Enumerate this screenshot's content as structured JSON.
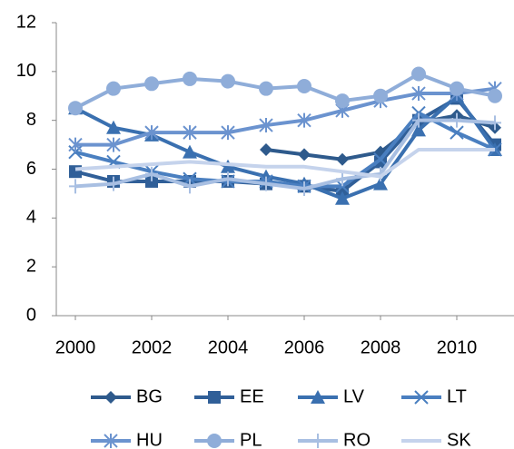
{
  "chart_data": {
    "type": "line",
    "x": [
      2000,
      2001,
      2002,
      2003,
      2004,
      2005,
      2006,
      2007,
      2008,
      2009,
      2010,
      2011
    ],
    "xlim": [
      1999.5,
      2011.5
    ],
    "xticks": [
      2000,
      2002,
      2004,
      2006,
      2008,
      2010
    ],
    "ylim": [
      0,
      12
    ],
    "yticks": [
      0,
      2,
      4,
      6,
      8,
      10,
      12
    ],
    "grid": false,
    "legend": "bottom",
    "series": [
      {
        "name": "BG",
        "color": "#2e5a8c",
        "marker": "diamond",
        "values": [
          null,
          null,
          null,
          null,
          null,
          6.8,
          6.6,
          6.4,
          6.7,
          7.9,
          8.2,
          7.7
        ]
      },
      {
        "name": "EE",
        "color": "#305f98",
        "marker": "square",
        "values": [
          5.9,
          5.5,
          5.5,
          5.5,
          5.5,
          5.4,
          5.3,
          5.1,
          6.3,
          8.0,
          8.9,
          7.0
        ]
      },
      {
        "name": "LV",
        "color": "#3a70b0",
        "marker": "triangle",
        "values": [
          8.5,
          7.7,
          7.4,
          6.7,
          6.1,
          5.7,
          5.4,
          4.8,
          5.4,
          7.6,
          9.0,
          6.8
        ]
      },
      {
        "name": "LT",
        "color": "#4a7fc0",
        "marker": "x",
        "values": [
          6.7,
          6.3,
          5.9,
          5.6,
          5.5,
          5.5,
          5.3,
          5.3,
          6.4,
          8.3,
          7.5,
          6.8
        ]
      },
      {
        "name": "HU",
        "color": "#6b93cf",
        "marker": "star",
        "values": [
          7.0,
          7.0,
          7.5,
          7.5,
          7.5,
          7.8,
          8.0,
          8.4,
          8.8,
          9.1,
          9.1,
          9.3
        ]
      },
      {
        "name": "PL",
        "color": "#8fadd9",
        "marker": "circle",
        "values": [
          8.5,
          9.3,
          9.5,
          9.7,
          9.6,
          9.3,
          9.4,
          8.8,
          9.0,
          9.9,
          9.3,
          9.0
        ]
      },
      {
        "name": "RO",
        "color": "#a8bfe2",
        "marker": "plus",
        "values": [
          5.3,
          5.4,
          5.8,
          5.3,
          5.6,
          5.4,
          5.2,
          5.6,
          5.8,
          8.0,
          8.0,
          7.9
        ]
      },
      {
        "name": "SK",
        "color": "#c5d3ec",
        "marker": "none",
        "values": [
          6.0,
          6.1,
          6.2,
          6.3,
          6.2,
          6.1,
          6.1,
          5.9,
          5.7,
          6.8,
          6.8,
          6.8
        ]
      }
    ]
  }
}
